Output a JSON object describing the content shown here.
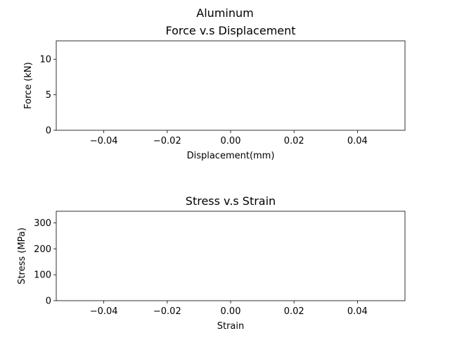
{
  "figure": {
    "suptitle": "Aluminum"
  },
  "chart_data": [
    {
      "type": "line",
      "title": "Force v.s Displacement",
      "xlabel": "Displacement(mm)",
      "ylabel": "Force (kN)",
      "xlim": [
        -0.055,
        0.055
      ],
      "ylim": [
        0,
        12.6
      ],
      "xticks": [
        -0.04,
        -0.02,
        0.0,
        0.02,
        0.04
      ],
      "xtick_labels": [
        "−0.04",
        "−0.02",
        "0.00",
        "0.02",
        "0.04"
      ],
      "yticks": [
        0,
        5,
        10
      ],
      "ytick_labels": [
        "0",
        "5",
        "10"
      ],
      "grid": false,
      "series": []
    },
    {
      "type": "line",
      "title": "Stress v.s Strain",
      "xlabel": "Strain",
      "ylabel": "Stress (MPa)",
      "xlim": [
        -0.055,
        0.055
      ],
      "ylim": [
        0,
        345
      ],
      "xticks": [
        -0.04,
        -0.02,
        0.0,
        0.02,
        0.04
      ],
      "xtick_labels": [
        "−0.04",
        "−0.02",
        "0.00",
        "0.02",
        "0.04"
      ],
      "yticks": [
        0,
        100,
        200,
        300
      ],
      "ytick_labels": [
        "0",
        "100",
        "200",
        "300"
      ],
      "grid": false,
      "series": []
    }
  ]
}
